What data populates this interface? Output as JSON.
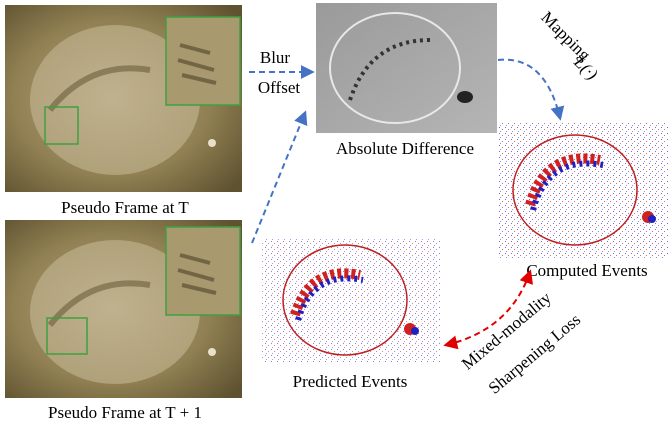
{
  "frame_t": {
    "label": "Pseudo Frame at T"
  },
  "frame_t1": {
    "label": "Pseudo Frame at T + 1"
  },
  "blur_offset": {
    "line1": "Blur",
    "line2": "Offset"
  },
  "absolute_difference": {
    "label": "Absolute Difference"
  },
  "mapping": {
    "label": "Mapping",
    "function": "L(·)"
  },
  "computed_events": {
    "label": "Computed Events"
  },
  "predicted_events": {
    "label": "Predicted Events"
  },
  "loss": {
    "line1": "Mixed-modality",
    "line2": "Sharpening Loss"
  }
}
